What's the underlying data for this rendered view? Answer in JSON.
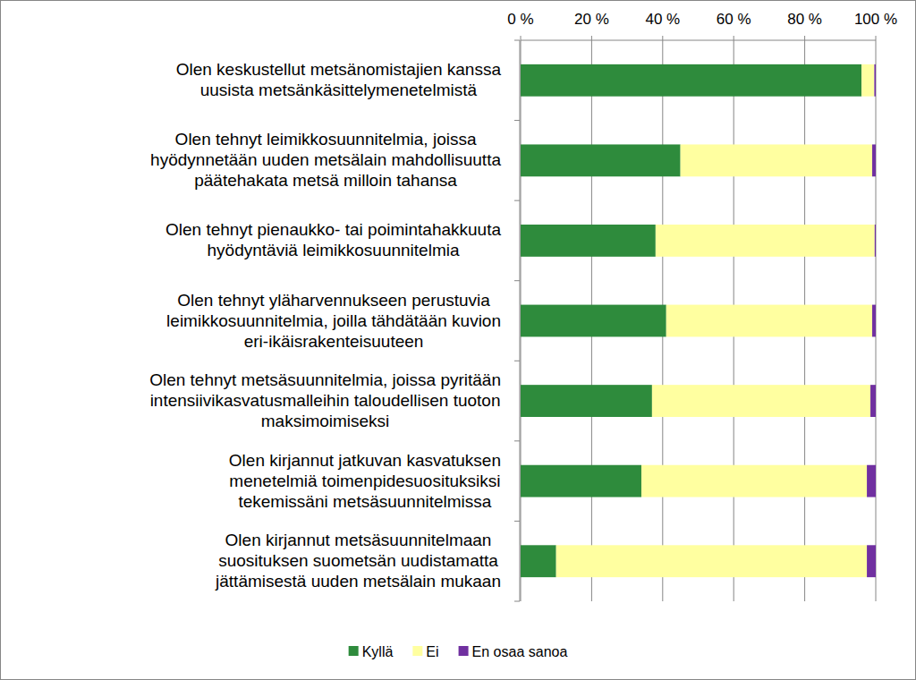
{
  "chart_data": {
    "type": "bar",
    "orientation": "horizontal",
    "stacked": true,
    "grid": true,
    "legend": "bottom",
    "categories": [
      "Olen keskustellut metsänomistajien kanssa\nuusista metsänkäsittelymenetelmistä",
      "Olen tehnyt leimikkosuunnitelmia, joissa\nhyödynnetään uuden metsälain mahdollisuutta\npäätehakata metsä milloin tahansa",
      "Olen tehnyt pienaukko- tai poimintahakkuuta\nhyödyntäviä leimikkosuunnitelmia",
      "Olen tehnyt yläharvennukseen perustuvia\nleimikkosuunnitelmia, joilla tähdätään kuvion\neri-ikäisrakenteisuuteen",
      "Olen tehnyt metsäsuunnitelmia, joissa pyritään\nintensiivikasvatusmalleihin taloudellisen tuoton\nmaksimoimiseksi",
      "Olen kirjannut jatkuvan kasvatuksen\nmenetelmiä toimenpidesuosituksiksi\ntekemissäni metsäsuunnitelmissa",
      "Olen kirjannut metsäsuunnitelmaan\nsuosituksen suometsän uudistamatta\njättämisestä uuden metsälain mukaan"
    ],
    "series": [
      {
        "name": "Kyllä",
        "color": "#2e8b3c",
        "values": [
          96,
          45,
          38,
          41,
          37,
          34,
          10
        ]
      },
      {
        "name": "Ei",
        "color": "#ffffa0",
        "values": [
          3.6,
          54,
          61.7,
          58,
          61.5,
          63.5,
          87.5
        ]
      },
      {
        "name": "En osaa sanoa",
        "color": "#7030a0",
        "values": [
          0.4,
          1,
          0.3,
          1,
          1.5,
          2.5,
          2.5
        ]
      }
    ],
    "xlim": [
      0,
      100
    ],
    "xticks": [
      {
        "value": 0,
        "label": "0 %"
      },
      {
        "value": 20,
        "label": "20 %"
      },
      {
        "value": 40,
        "label": "40 %"
      },
      {
        "value": 60,
        "label": "60 %"
      },
      {
        "value": 80,
        "label": "80 %"
      },
      {
        "value": 100,
        "label": "100 %"
      }
    ]
  }
}
